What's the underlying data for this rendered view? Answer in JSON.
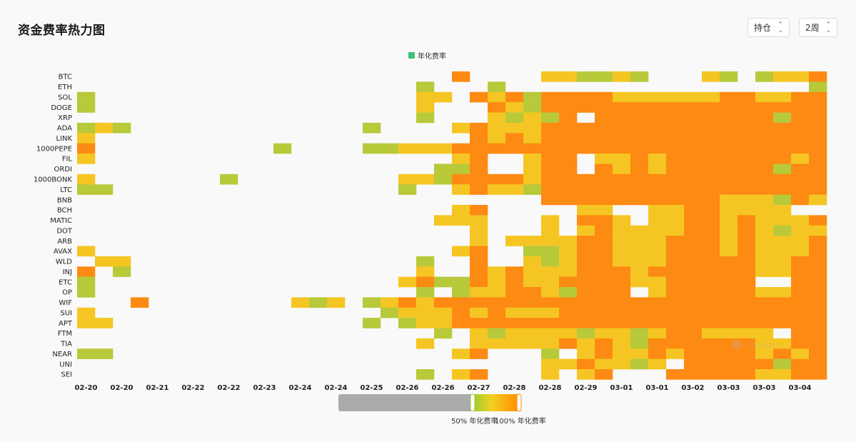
{
  "header": {
    "title": "资金费率热力图",
    "select_type": "持仓",
    "select_period": "2周"
  },
  "colors": {
    "accent": "#3dbf7a"
  },
  "chart_data": {
    "type": "heatmap",
    "legend": "年化费率",
    "y_categories": [
      "BTC",
      "ETH",
      "SOL",
      "DOGE",
      "XRP",
      "ADA",
      "LINK",
      "1000PEPE",
      "FIL",
      "ORDI",
      "1000BONK",
      "LTC",
      "BNB",
      "BCH",
      "MATIC",
      "DOT",
      "ARB",
      "AVAX",
      "WLD",
      "INJ",
      "ETC",
      "OP",
      "WIF",
      "SUI",
      "APT",
      "FTM",
      "TIA",
      "NEAR",
      "UNI",
      "SEI"
    ],
    "x_tick_labels": [
      "02-20",
      "02-20",
      "02-21",
      "02-22",
      "02-22",
      "02-23",
      "02-24",
      "02-24",
      "02-25",
      "02-26",
      "02-26",
      "02-27",
      "02-28",
      "02-28",
      "02-29",
      "03-01",
      "03-01",
      "03-02",
      "03-03",
      "03-03",
      "03-04"
    ],
    "columns": 42,
    "visual_map": {
      "min_label": "50% 年化费率",
      "max_label": "100% 年化费率",
      "min": 50,
      "max": 100,
      "range": [
        0,
        100
      ]
    },
    "values": [
      [
        0,
        0,
        0,
        0,
        0,
        0,
        0,
        0,
        0,
        0,
        0,
        0,
        0,
        0,
        0,
        0,
        0,
        0,
        0,
        0,
        0,
        3,
        0,
        0,
        0,
        0,
        2,
        2,
        1,
        1,
        2,
        1,
        0,
        0,
        0,
        2,
        1,
        0,
        1,
        2,
        2,
        3
      ],
      [
        0,
        0,
        0,
        0,
        0,
        0,
        0,
        0,
        0,
        0,
        0,
        0,
        0,
        0,
        0,
        0,
        0,
        0,
        0,
        1,
        0,
        0,
        0,
        1,
        0,
        0,
        0,
        0,
        0,
        0,
        0,
        0,
        0,
        0,
        0,
        0,
        0,
        0,
        0,
        0,
        0,
        1
      ],
      [
        1,
        0,
        0,
        0,
        0,
        0,
        0,
        0,
        0,
        0,
        0,
        0,
        0,
        0,
        0,
        0,
        0,
        0,
        0,
        2,
        2,
        0,
        3,
        2,
        3,
        1,
        3,
        3,
        3,
        3,
        2,
        2,
        2,
        2,
        2,
        2,
        3,
        3,
        2,
        2,
        3,
        3
      ],
      [
        1,
        0,
        0,
        0,
        0,
        0,
        0,
        0,
        0,
        0,
        0,
        0,
        0,
        0,
        0,
        0,
        0,
        0,
        0,
        2,
        0,
        0,
        0,
        3,
        2,
        1,
        3,
        3,
        3,
        3,
        3,
        3,
        3,
        3,
        3,
        3,
        3,
        3,
        3,
        3,
        3,
        3
      ],
      [
        0,
        0,
        0,
        0,
        0,
        0,
        0,
        0,
        0,
        0,
        0,
        0,
        0,
        0,
        0,
        0,
        0,
        0,
        0,
        1,
        0,
        0,
        0,
        2,
        1,
        2,
        1,
        3,
        0,
        3,
        3,
        3,
        3,
        3,
        3,
        3,
        3,
        3,
        3,
        1,
        3,
        3
      ],
      [
        1,
        2,
        1,
        0,
        0,
        0,
        0,
        0,
        0,
        0,
        0,
        0,
        0,
        0,
        0,
        0,
        1,
        0,
        0,
        0,
        0,
        2,
        3,
        2,
        2,
        2,
        3,
        3,
        3,
        3,
        3,
        3,
        3,
        3,
        3,
        3,
        3,
        3,
        3,
        3,
        3,
        3
      ],
      [
        2,
        0,
        0,
        0,
        0,
        0,
        0,
        0,
        0,
        0,
        0,
        0,
        0,
        0,
        0,
        0,
        0,
        0,
        0,
        0,
        0,
        0,
        3,
        2,
        3,
        2,
        3,
        3,
        3,
        3,
        3,
        3,
        3,
        3,
        3,
        3,
        3,
        3,
        3,
        3,
        3,
        3
      ],
      [
        3,
        0,
        0,
        0,
        0,
        0,
        0,
        0,
        0,
        0,
        0,
        1,
        0,
        0,
        0,
        0,
        1,
        1,
        2,
        2,
        2,
        3,
        3,
        3,
        3,
        3,
        3,
        3,
        3,
        3,
        3,
        3,
        3,
        3,
        3,
        3,
        3,
        3,
        3,
        3,
        3,
        3
      ],
      [
        2,
        0,
        0,
        0,
        0,
        0,
        0,
        0,
        0,
        0,
        0,
        0,
        0,
        0,
        0,
        0,
        0,
        0,
        0,
        0,
        0,
        2,
        3,
        0,
        0,
        2,
        3,
        3,
        0,
        2,
        2,
        3,
        2,
        3,
        3,
        3,
        3,
        3,
        3,
        3,
        2,
        3
      ],
      [
        0,
        0,
        0,
        0,
        0,
        0,
        0,
        0,
        0,
        0,
        0,
        0,
        0,
        0,
        0,
        0,
        0,
        0,
        0,
        0,
        1,
        1,
        3,
        0,
        0,
        2,
        3,
        3,
        0,
        3,
        2,
        3,
        2,
        3,
        3,
        3,
        3,
        3,
        3,
        1,
        3,
        3
      ],
      [
        2,
        0,
        0,
        0,
        0,
        0,
        0,
        0,
        1,
        0,
        0,
        0,
        0,
        0,
        0,
        0,
        0,
        0,
        2,
        2,
        1,
        3,
        3,
        3,
        3,
        2,
        3,
        3,
        3,
        3,
        3,
        3,
        3,
        3,
        3,
        3,
        3,
        3,
        3,
        3,
        3,
        3
      ],
      [
        1,
        1,
        0,
        0,
        0,
        0,
        0,
        0,
        0,
        0,
        0,
        0,
        0,
        0,
        0,
        0,
        0,
        0,
        1,
        0,
        0,
        2,
        3,
        2,
        2,
        1,
        3,
        3,
        3,
        3,
        3,
        3,
        3,
        3,
        3,
        3,
        3,
        3,
        3,
        3,
        3,
        3
      ],
      [
        0,
        0,
        0,
        0,
        0,
        0,
        0,
        0,
        0,
        0,
        0,
        0,
        0,
        0,
        0,
        0,
        0,
        0,
        0,
        0,
        0,
        0,
        0,
        0,
        0,
        0,
        3,
        3,
        3,
        3,
        3,
        3,
        3,
        3,
        3,
        3,
        2,
        2,
        2,
        1,
        3,
        2
      ],
      [
        0,
        0,
        0,
        0,
        0,
        0,
        0,
        0,
        0,
        0,
        0,
        0,
        0,
        0,
        0,
        0,
        0,
        0,
        0,
        0,
        0,
        2,
        3,
        0,
        0,
        0,
        0,
        0,
        2,
        2,
        0,
        0,
        2,
        2,
        3,
        3,
        2,
        2,
        2,
        2,
        0,
        0
      ],
      [
        0,
        0,
        0,
        0,
        0,
        0,
        0,
        0,
        0,
        0,
        0,
        0,
        0,
        0,
        0,
        0,
        0,
        0,
        0,
        0,
        2,
        2,
        2,
        0,
        0,
        0,
        2,
        0,
        3,
        3,
        2,
        0,
        2,
        2,
        3,
        3,
        2,
        3,
        2,
        2,
        2,
        3
      ],
      [
        0,
        0,
        0,
        0,
        0,
        0,
        0,
        0,
        0,
        0,
        0,
        0,
        0,
        0,
        0,
        0,
        0,
        0,
        0,
        0,
        0,
        0,
        2,
        0,
        0,
        0,
        2,
        0,
        2,
        3,
        2,
        2,
        2,
        2,
        3,
        3,
        2,
        3,
        2,
        1,
        2,
        2
      ],
      [
        0,
        0,
        0,
        0,
        0,
        0,
        0,
        0,
        0,
        0,
        0,
        0,
        0,
        0,
        0,
        0,
        0,
        0,
        0,
        0,
        0,
        0,
        2,
        0,
        2,
        2,
        2,
        2,
        3,
        3,
        2,
        2,
        2,
        3,
        3,
        3,
        2,
        3,
        2,
        2,
        2,
        3
      ],
      [
        2,
        0,
        0,
        0,
        0,
        0,
        0,
        0,
        0,
        0,
        0,
        0,
        0,
        0,
        0,
        0,
        0,
        0,
        0,
        0,
        0,
        2,
        3,
        0,
        0,
        1,
        1,
        2,
        3,
        3,
        2,
        2,
        2,
        3,
        3,
        3,
        2,
        3,
        2,
        2,
        2,
        3
      ],
      [
        0,
        2,
        2,
        0,
        0,
        0,
        0,
        0,
        0,
        0,
        0,
        0,
        0,
        0,
        0,
        0,
        0,
        0,
        0,
        1,
        0,
        0,
        3,
        0,
        0,
        2,
        1,
        2,
        3,
        3,
        2,
        2,
        2,
        3,
        3,
        3,
        3,
        3,
        2,
        2,
        3,
        3
      ],
      [
        3,
        0,
        1,
        0,
        0,
        0,
        0,
        0,
        0,
        0,
        0,
        0,
        0,
        0,
        0,
        0,
        0,
        0,
        0,
        2,
        0,
        0,
        3,
        2,
        3,
        2,
        2,
        2,
        3,
        3,
        3,
        2,
        3,
        3,
        3,
        3,
        3,
        3,
        2,
        2,
        3,
        3
      ],
      [
        1,
        0,
        0,
        0,
        0,
        0,
        0,
        0,
        0,
        0,
        0,
        0,
        0,
        0,
        0,
        0,
        0,
        0,
        2,
        3,
        1,
        1,
        3,
        2,
        3,
        2,
        2,
        3,
        3,
        3,
        3,
        2,
        2,
        3,
        3,
        3,
        3,
        3,
        0,
        0,
        3,
        3
      ],
      [
        1,
        0,
        0,
        0,
        0,
        0,
        0,
        0,
        0,
        0,
        0,
        0,
        0,
        0,
        0,
        0,
        0,
        0,
        0,
        1,
        0,
        1,
        2,
        2,
        3,
        3,
        2,
        1,
        3,
        3,
        3,
        0,
        2,
        3,
        3,
        3,
        3,
        3,
        2,
        2,
        3,
        3
      ],
      [
        0,
        0,
        0,
        3,
        0,
        0,
        0,
        0,
        0,
        0,
        0,
        0,
        2,
        1,
        2,
        0,
        1,
        2,
        3,
        2,
        3,
        3,
        3,
        3,
        3,
        3,
        3,
        3,
        3,
        3,
        3,
        3,
        3,
        3,
        3,
        3,
        3,
        3,
        3,
        3,
        3,
        3
      ],
      [
        2,
        0,
        0,
        0,
        0,
        0,
        0,
        0,
        0,
        0,
        0,
        0,
        0,
        0,
        0,
        0,
        0,
        1,
        2,
        2,
        2,
        3,
        2,
        3,
        2,
        2,
        2,
        3,
        3,
        3,
        3,
        3,
        3,
        3,
        3,
        3,
        3,
        3,
        3,
        3,
        3,
        3
      ],
      [
        2,
        2,
        0,
        0,
        0,
        0,
        0,
        0,
        0,
        0,
        0,
        0,
        0,
        0,
        0,
        0,
        1,
        0,
        1,
        2,
        2,
        3,
        3,
        3,
        3,
        3,
        3,
        3,
        3,
        3,
        3,
        3,
        3,
        3,
        3,
        3,
        3,
        3,
        3,
        3,
        3,
        3
      ],
      [
        0,
        0,
        0,
        0,
        0,
        0,
        0,
        0,
        0,
        0,
        0,
        0,
        0,
        0,
        0,
        0,
        0,
        0,
        0,
        0,
        1,
        0,
        2,
        1,
        2,
        2,
        2,
        2,
        1,
        2,
        2,
        1,
        2,
        3,
        3,
        2,
        2,
        2,
        2,
        0,
        3,
        3
      ],
      [
        0,
        0,
        0,
        0,
        0,
        0,
        0,
        0,
        0,
        0,
        0,
        0,
        0,
        0,
        0,
        0,
        0,
        0,
        0,
        2,
        0,
        0,
        2,
        2,
        2,
        2,
        2,
        3,
        2,
        3,
        2,
        1,
        3,
        3,
        3,
        3,
        3,
        3,
        2,
        2,
        3,
        3
      ],
      [
        1,
        1,
        0,
        0,
        0,
        0,
        0,
        0,
        0,
        0,
        0,
        0,
        0,
        0,
        0,
        0,
        0,
        0,
        0,
        0,
        0,
        2,
        3,
        0,
        0,
        0,
        1,
        0,
        2,
        3,
        2,
        2,
        3,
        2,
        3,
        3,
        3,
        3,
        2,
        3,
        2,
        3
      ],
      [
        0,
        0,
        0,
        0,
        0,
        0,
        0,
        0,
        0,
        0,
        0,
        0,
        0,
        0,
        0,
        0,
        0,
        0,
        0,
        0,
        0,
        0,
        0,
        0,
        0,
        0,
        2,
        2,
        3,
        2,
        2,
        1,
        2,
        0,
        3,
        3,
        3,
        3,
        3,
        1,
        3,
        3
      ],
      [
        0,
        0,
        0,
        0,
        0,
        0,
        0,
        0,
        0,
        0,
        0,
        0,
        0,
        0,
        0,
        0,
        0,
        0,
        0,
        1,
        0,
        2,
        3,
        0,
        0,
        0,
        2,
        0,
        2,
        3,
        0,
        0,
        0,
        3,
        3,
        3,
        3,
        3,
        2,
        2,
        3,
        3
      ]
    ]
  },
  "watermark": "coinglass"
}
